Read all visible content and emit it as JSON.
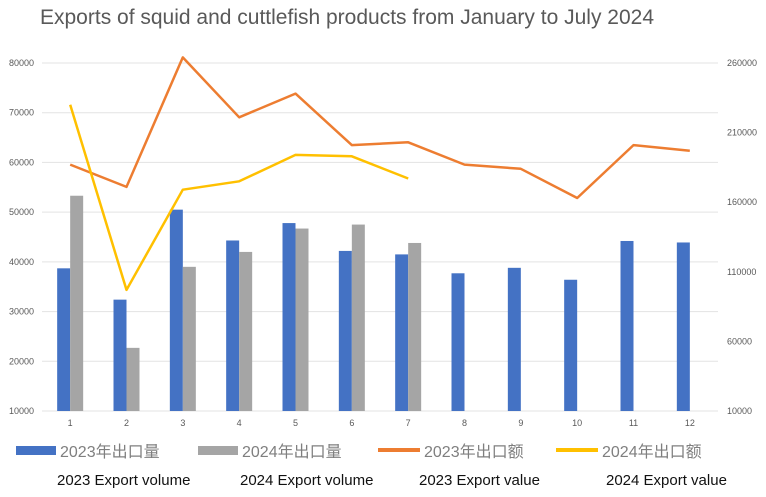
{
  "chart_data": {
    "type": "bar-line-combo",
    "title": "Exports of squid and cuttlefish products from January to July 2024",
    "categories": [
      "1",
      "2",
      "3",
      "4",
      "5",
      "6",
      "7",
      "8",
      "9",
      "10",
      "11",
      "12"
    ],
    "y_left": {
      "min": 10000,
      "max": 80000,
      "ticks": [
        "10000",
        "20000",
        "30000",
        "40000",
        "50000",
        "60000",
        "70000",
        "80000"
      ]
    },
    "y_right": {
      "min": 10000,
      "max": 260000,
      "ticks": [
        "10000",
        "60000",
        "110000",
        "160000",
        "210000",
        "260000"
      ]
    },
    "grid": true,
    "legend_position": "bottom",
    "series": [
      {
        "name": "2023年出口量",
        "type": "bar",
        "axis": "left",
        "color": "#4472c4",
        "values": [
          38700,
          32400,
          50500,
          44300,
          47800,
          42200,
          41500,
          37700,
          38800,
          36400,
          44200,
          43900
        ]
      },
      {
        "name": "2024年出口量",
        "type": "bar",
        "axis": "left",
        "color": "#a5a5a5",
        "values": [
          53300,
          22700,
          39000,
          42000,
          46700,
          47500,
          43800,
          null,
          null,
          null,
          null,
          null
        ]
      },
      {
        "name": "2023年出口额",
        "type": "line",
        "axis": "right",
        "color": "#ed7d31",
        "values": [
          187000,
          171000,
          264000,
          221000,
          238000,
          201000,
          203000,
          187000,
          184000,
          163000,
          201000,
          197000
        ]
      },
      {
        "name": "2024年出口额",
        "type": "line",
        "axis": "right",
        "color": "#ffc000",
        "values": [
          230000,
          97000,
          169000,
          175000,
          194000,
          193000,
          177000,
          null,
          null,
          null,
          null,
          null
        ]
      }
    ],
    "captions": [
      "2023 Export volume",
      "2024 Export volume",
      "2023 Export value",
      "2024 Export value"
    ]
  }
}
